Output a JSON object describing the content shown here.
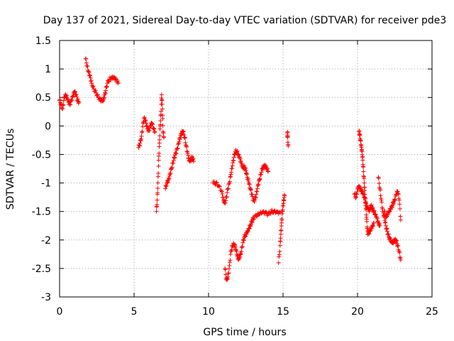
{
  "chart_data": {
    "type": "scatter",
    "title": "Day 137 of 2021, Sidereal Day-to-day VTEC variation (SDTVAR) for receiver pde3",
    "xlabel": "GPS time / hours",
    "ylabel": "SDTVAR / TECUs",
    "xlim": [
      0,
      25
    ],
    "ylim": [
      -3,
      1.5
    ],
    "grid": true,
    "marker": "+",
    "color": "#ff0000",
    "xticks": [
      {
        "v": 0,
        "label": "0"
      },
      {
        "v": 5,
        "label": "5"
      },
      {
        "v": 10,
        "label": "10"
      },
      {
        "v": 15,
        "label": "15"
      },
      {
        "v": 20,
        "label": "20"
      },
      {
        "v": 25,
        "label": "25"
      }
    ],
    "yticks": [
      {
        "v": 1.5,
        "label": "1.5"
      },
      {
        "v": 1,
        "label": "1"
      },
      {
        "v": 0.5,
        "label": "0.5"
      },
      {
        "v": 0,
        "label": "0"
      },
      {
        "v": -0.5,
        "label": "-0.5"
      },
      {
        "v": -1,
        "label": "-1"
      },
      {
        "v": -1.5,
        "label": "-1.5"
      },
      {
        "v": -2,
        "label": "-2"
      },
      {
        "v": -2.5,
        "label": "-2.5"
      },
      {
        "v": -3,
        "label": "-3"
      }
    ],
    "series": [
      {
        "name": "s1",
        "x": [
          0.0,
          0.1,
          0.2,
          0.3,
          0.4,
          0.5,
          0.6,
          0.7,
          0.8,
          0.9,
          1.0,
          1.1,
          1.2,
          1.3
        ],
        "y": [
          0.45,
          0.38,
          0.3,
          0.5,
          0.55,
          0.5,
          0.42,
          0.38,
          0.45,
          0.52,
          0.6,
          0.55,
          0.45,
          0.42
        ]
      },
      {
        "name": "s2",
        "x": [
          1.75,
          1.85,
          1.95,
          2.05,
          2.15,
          2.3,
          2.45,
          2.6,
          2.75,
          2.9,
          3.0,
          3.1,
          3.2,
          3.35,
          3.5,
          3.65,
          3.8,
          3.95
        ],
        "y": [
          1.18,
          1.05,
          0.95,
          0.88,
          0.75,
          0.65,
          0.58,
          0.5,
          0.45,
          0.43,
          0.5,
          0.62,
          0.75,
          0.82,
          0.85,
          0.86,
          0.82,
          0.75
        ]
      },
      {
        "name": "s3",
        "x": [
          5.3,
          5.4,
          5.5,
          5.6,
          5.7,
          5.8,
          5.9,
          6.0,
          6.1,
          6.2,
          6.3,
          6.4
        ],
        "y": [
          -0.38,
          -0.3,
          -0.18,
          0.05,
          0.15,
          0.05,
          -0.05,
          -0.08,
          0.0,
          0.05,
          -0.05,
          -0.1
        ]
      },
      {
        "name": "s4",
        "x": [
          6.5,
          6.55,
          6.6,
          6.65,
          6.7,
          6.75,
          6.8,
          6.85,
          6.9,
          6.95,
          7.0
        ],
        "y": [
          -1.5,
          -1.3,
          -1.0,
          -0.6,
          -0.3,
          0.0,
          0.2,
          0.55,
          0.3,
          -0.1,
          -0.2
        ]
      },
      {
        "name": "s5",
        "x": [
          7.1,
          7.2,
          7.3,
          7.4,
          7.5,
          7.6,
          7.7,
          7.8,
          7.9,
          8.0,
          8.1,
          8.2,
          8.3,
          8.4,
          8.5,
          8.6,
          8.7,
          8.8,
          8.9,
          9.0
        ],
        "y": [
          -1.1,
          -1.0,
          -0.95,
          -0.85,
          -0.75,
          -0.65,
          -0.55,
          -0.48,
          -0.4,
          -0.3,
          -0.2,
          -0.12,
          -0.1,
          -0.2,
          -0.35,
          -0.48,
          -0.6,
          -0.6,
          -0.55,
          -0.62
        ]
      },
      {
        "name": "s6",
        "x": [
          10.3,
          10.5,
          10.7,
          10.9,
          11.0,
          11.1,
          11.2,
          11.3,
          11.4,
          11.5,
          11.6,
          11.7,
          11.8,
          11.9,
          12.0,
          12.1,
          12.2,
          12.3,
          12.4,
          12.5,
          12.6,
          12.7,
          12.8,
          12.9,
          13.0,
          13.1,
          13.2,
          13.3,
          13.4,
          13.5,
          13.6,
          13.7,
          13.8,
          13.9,
          14.0
        ],
        "y": [
          -1.0,
          -1.0,
          -1.05,
          -1.15,
          -1.3,
          -1.35,
          -1.25,
          -1.1,
          -1.0,
          -0.85,
          -0.7,
          -0.55,
          -0.45,
          -0.45,
          -0.5,
          -0.55,
          -0.65,
          -0.72,
          -0.72,
          -0.78,
          -0.9,
          -1.0,
          -1.1,
          -1.2,
          -1.3,
          -1.3,
          -1.2,
          -1.05,
          -0.95,
          -0.85,
          -0.75,
          -0.72,
          -0.7,
          -0.75,
          -0.8
        ]
      },
      {
        "name": "s7",
        "x": [
          11.1,
          11.2,
          11.3,
          11.4,
          11.5,
          11.6,
          11.7,
          11.8,
          11.9,
          12.0,
          12.1,
          12.2,
          12.3,
          12.4,
          12.5,
          12.6,
          12.7,
          12.8,
          12.9,
          13.0,
          13.2,
          13.4,
          13.6,
          13.8,
          14.0,
          14.2,
          14.4,
          14.6,
          14.8
        ],
        "y": [
          -2.5,
          -2.7,
          -2.65,
          -2.45,
          -2.2,
          -2.1,
          -2.08,
          -2.12,
          -2.25,
          -2.35,
          -2.3,
          -2.2,
          -2.05,
          -1.95,
          -1.9,
          -1.85,
          -1.8,
          -1.75,
          -1.68,
          -1.62,
          -1.58,
          -1.55,
          -1.52,
          -1.52,
          -1.55,
          -1.5,
          -1.5,
          -1.5,
          -1.52
        ]
      },
      {
        "name": "s8",
        "x": [
          14.7,
          14.8,
          14.85,
          14.9,
          14.95,
          15.0,
          15.05,
          15.1
        ],
        "y": [
          -2.4,
          -2.1,
          -1.9,
          -1.7,
          -1.5,
          -1.4,
          -1.3,
          -1.22
        ]
      },
      {
        "name": "s9",
        "x": [
          15.3,
          15.3,
          15.35
        ],
        "y": [
          -0.12,
          -0.18,
          -0.35
        ]
      },
      {
        "name": "s10",
        "x": [
          19.8,
          19.9,
          20.0,
          20.1,
          20.2,
          20.3,
          20.4,
          20.5,
          20.6,
          20.7,
          20.8,
          20.9,
          21.0,
          21.1,
          21.2,
          21.3,
          21.4,
          21.5
        ],
        "y": [
          -1.2,
          -1.25,
          -1.1,
          -1.05,
          -1.1,
          -1.15,
          -1.2,
          -1.3,
          -1.4,
          -1.45,
          -1.5,
          -1.4,
          -1.45,
          -1.5,
          -1.55,
          -1.6,
          -1.7,
          -1.75
        ]
      },
      {
        "name": "s11",
        "x": [
          20.1,
          20.15,
          20.2,
          20.25,
          20.3,
          20.35,
          20.4,
          20.45,
          20.5,
          20.55,
          20.6,
          20.65,
          20.7,
          20.8,
          20.9,
          21.0,
          21.1
        ],
        "y": [
          -0.1,
          -0.15,
          -0.25,
          -0.35,
          -0.45,
          -0.6,
          -0.8,
          -1.0,
          -1.2,
          -1.4,
          -1.6,
          -1.8,
          -1.9,
          -1.85,
          -1.8,
          -1.75,
          -1.7
        ]
      },
      {
        "name": "s12",
        "x": [
          21.4,
          21.5,
          21.6,
          21.7,
          21.8,
          21.9,
          22.0,
          22.1,
          22.2,
          22.3,
          22.4,
          22.5,
          22.6,
          22.7,
          22.8,
          22.9
        ],
        "y": [
          -0.9,
          -1.1,
          -1.3,
          -1.5,
          -1.6,
          -1.75,
          -1.85,
          -1.95,
          -2.0,
          -2.05,
          -2.05,
          -2.0,
          -2.02,
          -2.1,
          -2.2,
          -2.35
        ]
      },
      {
        "name": "s13",
        "x": [
          21.8,
          21.9,
          22.0,
          22.1,
          22.2,
          22.3,
          22.4,
          22.5,
          22.6,
          22.7,
          22.8,
          22.9
        ],
        "y": [
          -1.5,
          -1.6,
          -1.55,
          -1.5,
          -1.45,
          -1.42,
          -1.35,
          -1.3,
          -1.2,
          -1.15,
          -1.3,
          -1.65
        ]
      }
    ]
  }
}
